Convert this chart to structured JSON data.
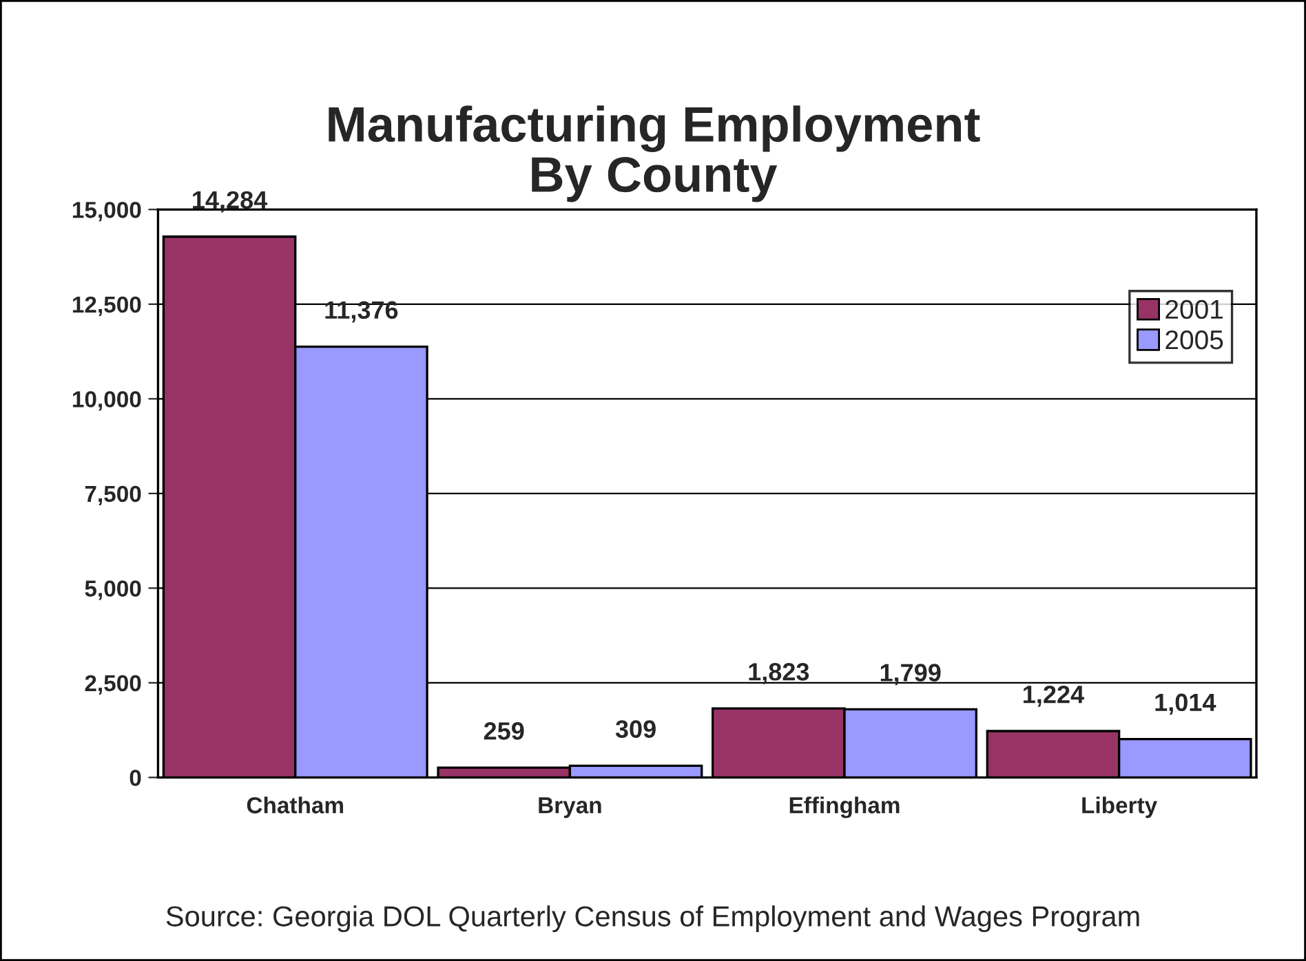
{
  "chart_data": {
    "type": "bar",
    "title": "Manufacturing Employment\nBy County",
    "categories": [
      "Chatham",
      "Bryan",
      "Effingham",
      "Liberty"
    ],
    "series": [
      {
        "name": "2001",
        "color": "#993366",
        "values": [
          14284,
          259,
          1823,
          1224
        ],
        "value_labels": [
          "14,284",
          "259",
          "1,823",
          "1,224"
        ]
      },
      {
        "name": "2005",
        "color": "#9999ff",
        "values": [
          11376,
          309,
          1799,
          1014
        ],
        "value_labels": [
          "11,376",
          "309",
          "1,799",
          "1,014"
        ]
      }
    ],
    "ylim": [
      0,
      15000
    ],
    "yticks": [
      {
        "value": 0,
        "label": "0"
      },
      {
        "value": 2500,
        "label": "2,500"
      },
      {
        "value": 5000,
        "label": "5,000"
      },
      {
        "value": 7500,
        "label": "7,500"
      },
      {
        "value": 10000,
        "label": "10,000"
      },
      {
        "value": 12500,
        "label": "12,500"
      },
      {
        "value": 15000,
        "label": "15,000"
      }
    ],
    "grid": "y",
    "legend": "top right",
    "annotations": [
      "Source: Georgia DOL Quarterly Census of Employment and Wages Program"
    ]
  }
}
